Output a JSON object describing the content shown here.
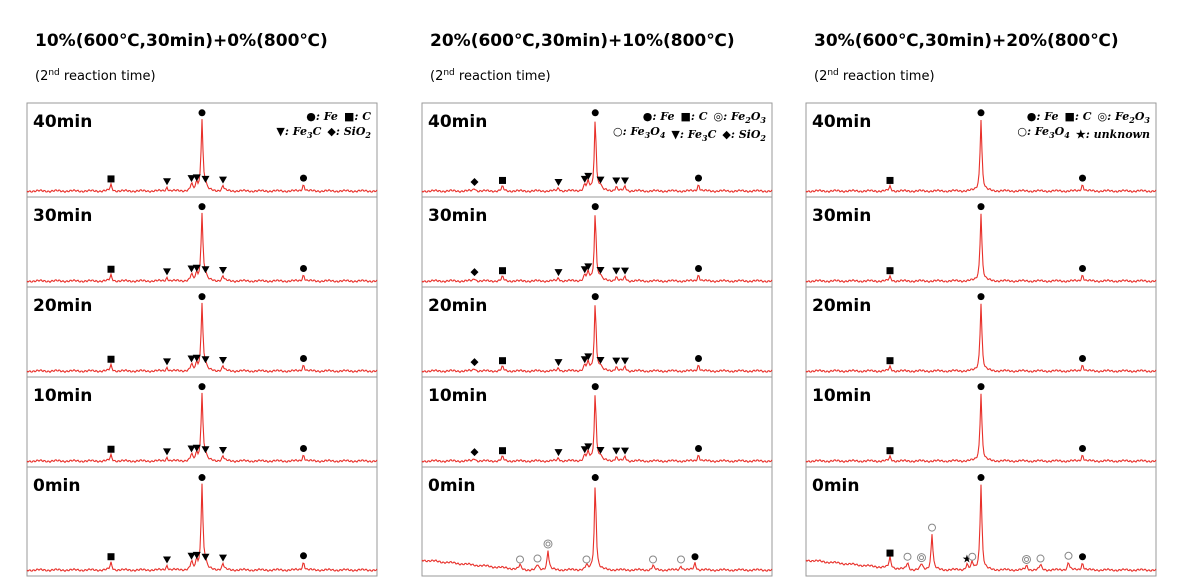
{
  "columns": [
    {
      "title": "10%(600℃,30min)+0%(800℃)",
      "subtitle": [
        "(2",
        "nd",
        " reaction time)"
      ],
      "legend": [
        [
          {
            "symbol": "●",
            "name": [
              "Fe"
            ]
          },
          {
            "symbol": "■",
            "name": [
              "C"
            ]
          }
        ],
        [
          {
            "symbol": "▼",
            "name": [
              "Fe",
              "3",
              "C"
            ]
          },
          {
            "symbol": "◆",
            "name": [
              "SiO",
              "2"
            ]
          }
        ]
      ],
      "panels": [
        {
          "label": "40min"
        },
        {
          "label": "30min"
        },
        {
          "label": "20min"
        },
        {
          "label": "10min"
        },
        {
          "label": "0min"
        }
      ]
    },
    {
      "title": "20%(600℃,30min)+10%(800℃)",
      "subtitle": [
        "(2",
        "nd",
        " reaction time)"
      ],
      "legend": [
        [
          {
            "symbol": "●",
            "name": [
              "Fe"
            ]
          },
          {
            "symbol": "■",
            "name": [
              "C"
            ]
          },
          {
            "symbol": "◎",
            "name": [
              "Fe",
              "2",
              "O",
              "3"
            ]
          }
        ],
        [
          {
            "symbol": "○",
            "name": [
              "Fe",
              "3",
              "O",
              "4"
            ]
          },
          {
            "symbol": "▼",
            "name": [
              "Fe",
              "3",
              "C"
            ]
          },
          {
            "symbol": "◆",
            "name": [
              "SiO",
              "2"
            ]
          }
        ]
      ],
      "panels": [
        {
          "label": "40min"
        },
        {
          "label": "30min"
        },
        {
          "label": "20min"
        },
        {
          "label": "10min"
        },
        {
          "label": "0min"
        }
      ]
    },
    {
      "title": "30%(600℃,30min)+20%(800℃)",
      "subtitle": [
        "(2",
        "nd",
        " reaction time)"
      ],
      "legend": [
        [
          {
            "symbol": "●",
            "name": [
              "Fe"
            ]
          },
          {
            "symbol": "■",
            "name": [
              "C"
            ]
          },
          {
            "symbol": "◎",
            "name": [
              "Fe",
              "2",
              "O",
              "3"
            ]
          }
        ],
        [
          {
            "symbol": "○",
            "name": [
              "Fe",
              "3",
              "O",
              "4"
            ]
          },
          {
            "symbol": "★",
            "name": [
              " unknown"
            ]
          }
        ]
      ],
      "panels": [
        {
          "label": "40min"
        },
        {
          "label": "30min"
        },
        {
          "label": "20min"
        },
        {
          "label": "10min"
        },
        {
          "label": "0min"
        }
      ]
    }
  ]
}
